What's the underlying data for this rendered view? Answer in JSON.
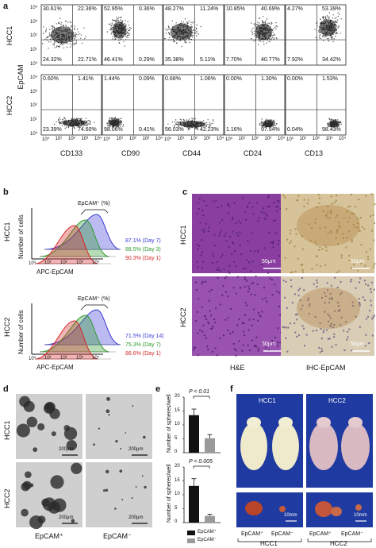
{
  "panel_labels": [
    "a",
    "b",
    "c",
    "d",
    "e",
    "f"
  ],
  "panel_a": {
    "rows": [
      "HCC1",
      "HCC2"
    ],
    "ylabel": "EpCAM",
    "columns": [
      "CD133",
      "CD90",
      "CD44",
      "CD24",
      "CD13"
    ],
    "ticks": [
      "10⁰",
      "10¹",
      "10²",
      "10³",
      "10⁴"
    ],
    "quadrants": [
      [
        {
          "tl": "30.61%",
          "tr": "22.36%",
          "bl": "24.32%",
          "br": "22.71%"
        },
        {
          "tl": "52.95%",
          "tr": "0.36%",
          "bl": "46.41%",
          "br": "0.29%"
        },
        {
          "tl": "48.27%",
          "tr": "11.24%",
          "bl": "35.38%",
          "br": "5.11%"
        },
        {
          "tl": "10.85%",
          "tr": "40.69%",
          "bl": "7.70%",
          "br": "40.77%"
        },
        {
          "tl": "4.27%",
          "tr": "53.39%",
          "bl": "7.92%",
          "br": "34.42%"
        }
      ],
      [
        {
          "tl": "0.60%",
          "tr": "1.41%",
          "bl": "23.39%",
          "br": "74.60%"
        },
        {
          "tl": "1.44%",
          "tr": "0.09%",
          "bl": "98.06%",
          "br": "0.41%"
        },
        {
          "tl": "0.68%",
          "tr": "1.06%",
          "bl": "56.03%",
          "br": "42.23%"
        },
        {
          "tl": "0.00%",
          "tr": "1.30%",
          "bl": "1.16%",
          "br": "97.54%"
        },
        {
          "tl": "0.00%",
          "tr": "1.53%",
          "bl": "0.04%",
          "br": "98.43%"
        }
      ]
    ]
  },
  "panel_b": {
    "ylabel": "Number of cells",
    "xlabel": "APC-EpCAM",
    "gate_label": "EpCAM⁺ (%)",
    "ticks": [
      "10⁰",
      "10¹",
      "10²",
      "10³",
      "10⁴"
    ],
    "plots": [
      {
        "name": "HCC1",
        "legend": [
          {
            "text": "87.1% (Day 7)",
            "color": "#3b3bd6"
          },
          {
            "text": "88.5% (Day 3)",
            "color": "#2e9a2e"
          },
          {
            "text": "90.3% (Day 1)",
            "color": "#d62828"
          }
        ]
      },
      {
        "name": "HCC2",
        "legend": [
          {
            "text": "71.5% (Day 14)",
            "color": "#3b3bd6"
          },
          {
            "text": "75.3% (Day 7)",
            "color": "#2e9a2e"
          },
          {
            "text": "86.6% (Day 1)",
            "color": "#d62828"
          }
        ]
      }
    ]
  },
  "panel_c": {
    "rows": [
      "HCC1",
      "HCC2"
    ],
    "columns": [
      "H&E",
      "IHC-EpCAM"
    ],
    "scale": "50μm"
  },
  "panel_d": {
    "rows": [
      "HCC1",
      "HCC2"
    ],
    "columns": [
      "EpCAM⁺",
      "EpCAM⁻"
    ],
    "scale": "200μm"
  },
  "panel_e": {
    "ylabel": "Number of spheres/well",
    "charts": [
      {
        "pvalue": "P < 0.01",
        "ylim": [
          0,
          20
        ],
        "ticks": [
          "0",
          "5",
          "10",
          "15",
          "20"
        ],
        "values": [
          13.5,
          5.2
        ],
        "errors": [
          2.2,
          1.3
        ]
      },
      {
        "pvalue": "P < 0.005",
        "ylim": [
          0,
          20
        ],
        "ticks": [
          "0",
          "5",
          "10",
          "15",
          "20"
        ],
        "values": [
          13.2,
          2.4
        ],
        "errors": [
          2.6,
          0.6
        ]
      }
    ],
    "legend": [
      {
        "text": "EpCAM⁺",
        "color": "#111111"
      },
      {
        "text": "EpCAM⁻",
        "color": "#9a9a9a"
      }
    ]
  },
  "panel_f": {
    "groups": [
      "HCC1",
      "HCC2"
    ],
    "conditions": [
      "EpCAM⁺",
      "EpCAM⁻",
      "EpCAM⁺",
      "EpCAM⁻"
    ],
    "scale": "10mm"
  }
}
